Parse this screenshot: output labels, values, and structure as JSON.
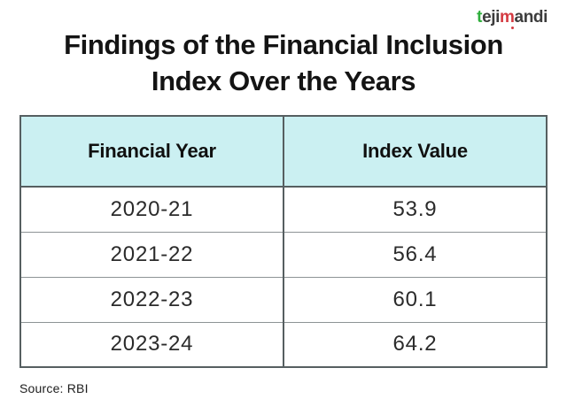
{
  "logo": {
    "part1": "t",
    "part2": "eji",
    "part3": "m",
    "part4": "andi"
  },
  "title": {
    "line1": "Findings of the Financial Inclusion",
    "line2": "Index Over the Years"
  },
  "table": {
    "columns": [
      "Financial Year",
      "Index Value"
    ],
    "rows": [
      [
        "2020-21",
        "53.9"
      ],
      [
        "2021-22",
        "56.4"
      ],
      [
        "2022-23",
        "60.1"
      ],
      [
        "2023-24",
        "64.2"
      ]
    ]
  },
  "source": "Source: RBI",
  "colors": {
    "header_bg": "#cbf0f2",
    "border_dark": "#565f61",
    "border_light": "#8d9395",
    "logo_green": "#2fae3c",
    "logo_red": "#d43a41",
    "logo_dark": "#3c3c3c",
    "text_main": "#141414"
  },
  "chart_data": {
    "type": "table",
    "title": "Findings of the Financial Inclusion Index Over the Years",
    "columns": [
      "Financial Year",
      "Index Value"
    ],
    "categories": [
      "2020-21",
      "2021-22",
      "2022-23",
      "2023-24"
    ],
    "values": [
      53.9,
      56.4,
      60.1,
      64.2
    ],
    "source": "Source: RBI"
  }
}
